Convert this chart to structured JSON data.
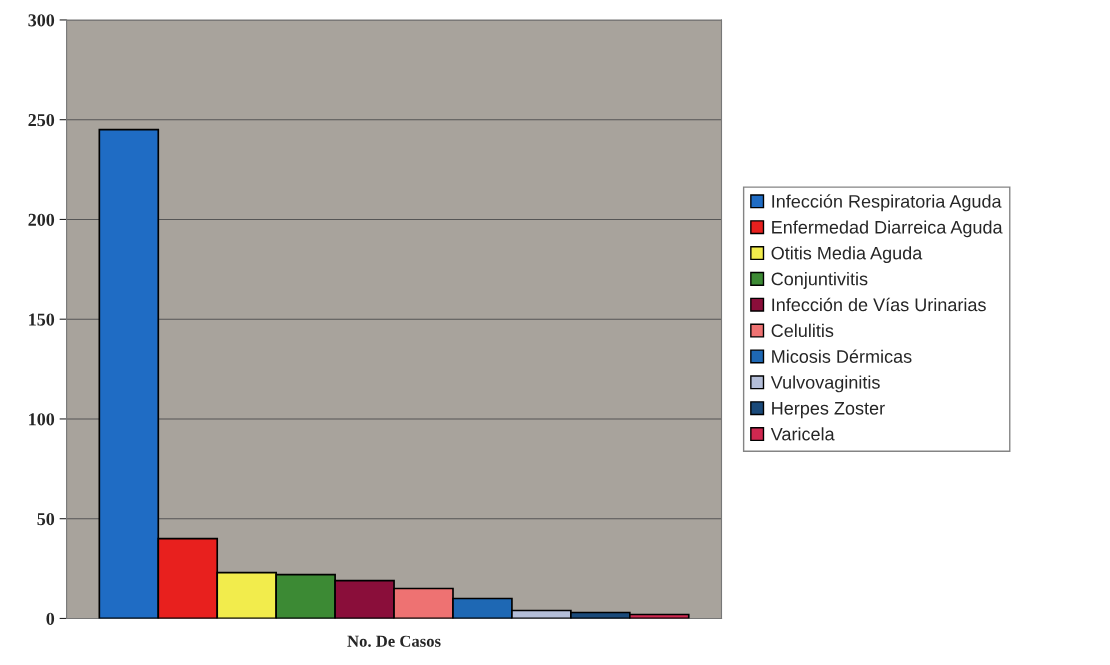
{
  "chart_data": {
    "type": "bar",
    "categories": [
      "No. De Casos"
    ],
    "ylim": [
      0,
      300
    ],
    "yticks": [
      0,
      50,
      100,
      150,
      200,
      250,
      300
    ],
    "grid": "y",
    "legend": "right",
    "series": [
      {
        "name": "Infección Respiratoria Aguda",
        "color": "#1f6cc4",
        "values": [
          245
        ]
      },
      {
        "name": "Enfermedad Diarreica Aguda",
        "color": "#e8201e",
        "values": [
          40
        ]
      },
      {
        "name": "Otitis Media Aguda",
        "color": "#f2ec4c",
        "values": [
          23
        ]
      },
      {
        "name": "Conjuntivitis",
        "color": "#3c8a34",
        "values": [
          22
        ]
      },
      {
        "name": "Infección de Vías Urinarias",
        "color": "#8a0e3a",
        "values": [
          19
        ]
      },
      {
        "name": "Celulitis",
        "color": "#ee7272",
        "values": [
          15
        ]
      },
      {
        "name": "Micosis Dérmicas",
        "color": "#1e68b4",
        "values": [
          10
        ]
      },
      {
        "name": "Vulvovaginitis",
        "color": "#b4bed8",
        "values": [
          4
        ]
      },
      {
        "name": "Herpes Zoster",
        "color": "#1a4a7a",
        "values": [
          3
        ]
      },
      {
        "name": "Varicela",
        "color": "#d02850",
        "values": [
          2
        ]
      }
    ]
  }
}
